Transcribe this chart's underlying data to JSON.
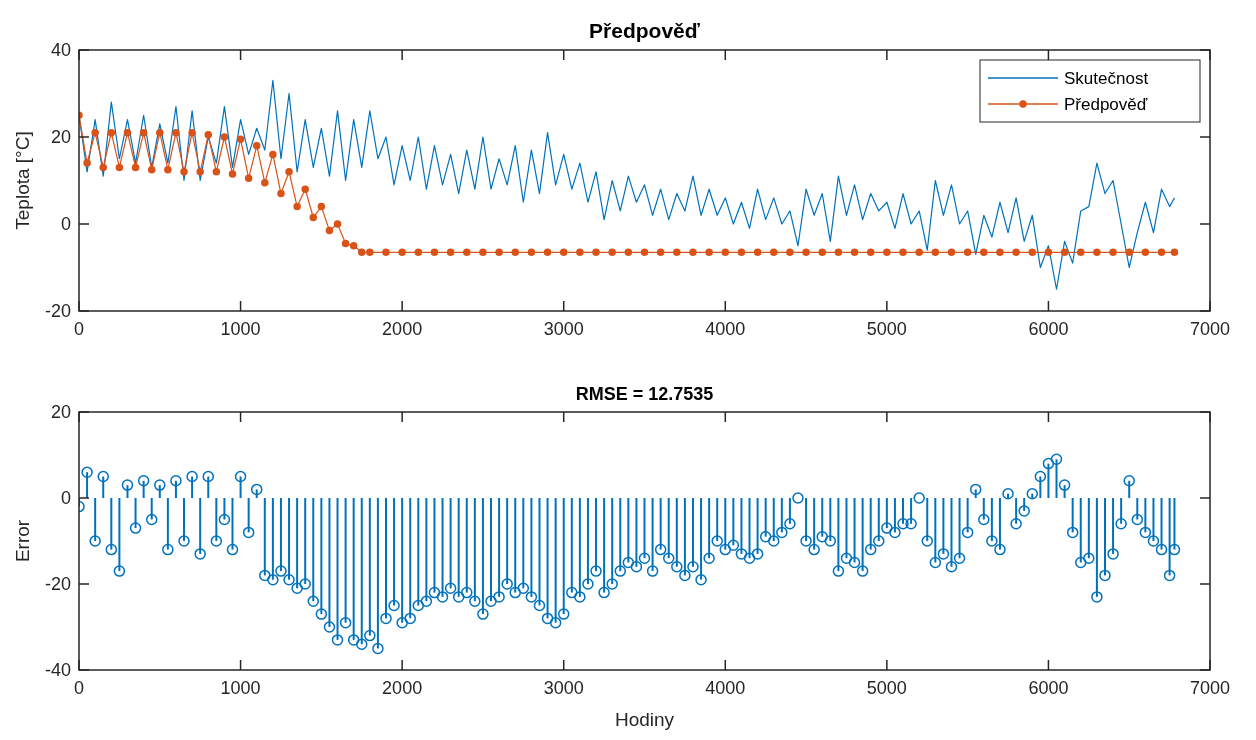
{
  "chart_data": [
    {
      "type": "line",
      "title": "Předpověď",
      "ylabel": "Teplota [°C]",
      "xlim": [
        0,
        7000
      ],
      "xticks": [
        0,
        1000,
        2000,
        3000,
        4000,
        5000,
        6000,
        7000
      ],
      "ylim": [
        -20,
        40
      ],
      "yticks": [
        -20,
        0,
        20,
        40
      ],
      "legend": "top right",
      "grid": false,
      "series": [
        {
          "name": "Skutečnost",
          "color": "#0072bd",
          "marker": "none",
          "x": [
            0,
            50,
            100,
            150,
            200,
            250,
            300,
            350,
            400,
            450,
            500,
            550,
            600,
            650,
            700,
            750,
            800,
            850,
            900,
            950,
            1000,
            1050,
            1100,
            1150,
            1200,
            1250,
            1300,
            1350,
            1400,
            1450,
            1500,
            1550,
            1600,
            1650,
            1700,
            1750,
            1800,
            1850,
            1900,
            1950,
            2000,
            2050,
            2100,
            2150,
            2200,
            2250,
            2300,
            2350,
            2400,
            2450,
            2500,
            2550,
            2600,
            2650,
            2700,
            2750,
            2800,
            2850,
            2900,
            2950,
            3000,
            3050,
            3100,
            3150,
            3200,
            3250,
            3300,
            3350,
            3400,
            3450,
            3500,
            3550,
            3600,
            3650,
            3700,
            3750,
            3800,
            3850,
            3900,
            3950,
            4000,
            4050,
            4100,
            4150,
            4200,
            4250,
            4300,
            4350,
            4400,
            4450,
            4500,
            4550,
            4600,
            4650,
            4700,
            4750,
            4800,
            4850,
            4900,
            4950,
            5000,
            5050,
            5100,
            5150,
            5200,
            5250,
            5300,
            5350,
            5400,
            5450,
            5500,
            5550,
            5600,
            5650,
            5700,
            5750,
            5800,
            5850,
            5900,
            5950,
            6000,
            6050,
            6100,
            6150,
            6200,
            6250,
            6300,
            6350,
            6400,
            6450,
            6500,
            6550,
            6600,
            6650,
            6700,
            6750,
            6780
          ],
          "values": [
            25,
            12,
            24,
            11,
            28,
            15,
            24,
            14,
            25,
            13,
            23,
            14,
            27,
            10,
            26,
            10,
            20,
            14,
            27,
            13,
            24,
            16,
            22,
            17,
            33,
            15,
            30,
            12,
            24,
            13,
            22,
            11,
            26,
            10,
            24,
            13,
            26,
            15,
            20,
            9,
            18,
            10,
            20,
            8,
            18,
            9,
            16,
            7,
            17,
            8,
            20,
            8,
            15,
            9,
            18,
            5,
            17,
            7,
            21,
            9,
            16,
            8,
            14,
            5,
            12,
            1,
            10,
            3,
            11,
            5,
            9,
            2,
            8,
            1,
            7,
            3,
            11,
            2,
            8,
            2,
            6,
            0,
            5,
            -1,
            8,
            1,
            6,
            0,
            3,
            -5,
            8,
            2,
            7,
            -4,
            11,
            2,
            9,
            1,
            7,
            3,
            5,
            -1,
            7,
            0,
            3,
            -6,
            10,
            2,
            9,
            0,
            3,
            -7,
            2,
            -3,
            5,
            -2,
            6,
            -4,
            2,
            -10,
            -5,
            -15,
            -4,
            -9,
            3,
            4,
            14,
            7,
            10,
            0,
            -10,
            -2,
            5,
            -2,
            8,
            4,
            6
          ]
        },
        {
          "name": "Předpověď",
          "color": "#d95319",
          "marker": "circle",
          "x": [
            0,
            50,
            100,
            150,
            200,
            250,
            300,
            350,
            400,
            450,
            500,
            550,
            600,
            650,
            700,
            750,
            800,
            850,
            900,
            950,
            1000,
            1050,
            1100,
            1150,
            1200,
            1250,
            1300,
            1350,
            1400,
            1450,
            1500,
            1550,
            1600,
            1650,
            1700,
            1750,
            1800,
            1900,
            2000,
            2100,
            2200,
            2300,
            2400,
            2500,
            2600,
            2700,
            2800,
            2900,
            3000,
            3100,
            3200,
            3300,
            3400,
            3500,
            3600,
            3700,
            3800,
            3900,
            4000,
            4100,
            4200,
            4300,
            4400,
            4500,
            4600,
            4700,
            4800,
            4900,
            5000,
            5100,
            5200,
            5300,
            5400,
            5500,
            5600,
            5700,
            5800,
            5900,
            6000,
            6100,
            6200,
            6300,
            6400,
            6500,
            6600,
            6700,
            6780
          ],
          "values": [
            25,
            14,
            21,
            13,
            21,
            13,
            21,
            13,
            21,
            12.5,
            21,
            12.5,
            21,
            12,
            21,
            12,
            20.5,
            12,
            20,
            11.5,
            19.5,
            10.5,
            18,
            9.5,
            16,
            7,
            12,
            4,
            8,
            1.5,
            4,
            -1.5,
            0,
            -4.5,
            -5,
            -6.5,
            -6.5,
            -6.5,
            -6.5,
            -6.5,
            -6.5,
            -6.5,
            -6.5,
            -6.5,
            -6.5,
            -6.5,
            -6.5,
            -6.5,
            -6.5,
            -6.5,
            -6.5,
            -6.5,
            -6.5,
            -6.5,
            -6.5,
            -6.5,
            -6.5,
            -6.5,
            -6.5,
            -6.5,
            -6.5,
            -6.5,
            -6.5,
            -6.5,
            -6.5,
            -6.5,
            -6.5,
            -6.5,
            -6.5,
            -6.5,
            -6.5,
            -6.5,
            -6.5,
            -6.5,
            -6.5,
            -6.5,
            -6.5,
            -6.5,
            -6.5,
            -6.5,
            -6.5,
            -6.5,
            -6.5,
            -6.5,
            -6.5,
            -6.5,
            -6.5
          ]
        }
      ]
    },
    {
      "type": "lollipop",
      "title": "RMSE = 12.7535",
      "xlabel": "Hodiny",
      "ylabel": "Error",
      "xlim": [
        0,
        7000
      ],
      "xticks": [
        0,
        1000,
        2000,
        3000,
        4000,
        5000,
        6000,
        7000
      ],
      "ylim": [
        -40,
        20
      ],
      "yticks": [
        -40,
        -20,
        0,
        20
      ],
      "grid": false,
      "marker": "circle",
      "series": [
        {
          "color": "#0072bd",
          "x": [
            0,
            50,
            100,
            150,
            200,
            250,
            300,
            350,
            400,
            450,
            500,
            550,
            600,
            650,
            700,
            750,
            800,
            850,
            900,
            950,
            1000,
            1050,
            1100,
            1150,
            1200,
            1250,
            1300,
            1350,
            1400,
            1450,
            1500,
            1550,
            1600,
            1650,
            1700,
            1750,
            1800,
            1850,
            1900,
            1950,
            2000,
            2050,
            2100,
            2150,
            2200,
            2250,
            2300,
            2350,
            2400,
            2450,
            2500,
            2550,
            2600,
            2650,
            2700,
            2750,
            2800,
            2850,
            2900,
            2950,
            3000,
            3050,
            3100,
            3150,
            3200,
            3250,
            3300,
            3350,
            3400,
            3450,
            3500,
            3550,
            3600,
            3650,
            3700,
            3750,
            3800,
            3850,
            3900,
            3950,
            4000,
            4050,
            4100,
            4150,
            4200,
            4250,
            4300,
            4350,
            4400,
            4450,
            4500,
            4550,
            4600,
            4650,
            4700,
            4750,
            4800,
            4850,
            4900,
            4950,
            5000,
            5050,
            5100,
            5150,
            5200,
            5250,
            5300,
            5350,
            5400,
            5450,
            5500,
            5550,
            5600,
            5650,
            5700,
            5750,
            5800,
            5850,
            5900,
            5950,
            6000,
            6050,
            6100,
            6150,
            6200,
            6250,
            6300,
            6350,
            6400,
            6450,
            6500,
            6550,
            6600,
            6650,
            6700,
            6750,
            6780
          ],
          "values": [
            -2,
            6,
            -10,
            5,
            -12,
            -17,
            3,
            -7,
            4,
            -5,
            3,
            -12,
            4,
            -10,
            5,
            -13,
            5,
            -10,
            -5,
            -12,
            5,
            -8,
            2,
            -18,
            -19,
            -17,
            -19,
            -21,
            -20,
            -24,
            -27,
            -30,
            -33,
            -29,
            -33,
            -34,
            -32,
            -35,
            -28,
            -25,
            -29,
            -28,
            -25,
            -24,
            -22,
            -23,
            -21,
            -23,
            -22,
            -24,
            -27,
            -24,
            -23,
            -20,
            -22,
            -21,
            -23,
            -25,
            -28,
            -29,
            -27,
            -22,
            -23,
            -20,
            -17,
            -22,
            -20,
            -17,
            -15,
            -16,
            -14,
            -17,
            -12,
            -14,
            -16,
            -18,
            -16,
            -19,
            -14,
            -10,
            -12,
            -11,
            -13,
            -14,
            -13,
            -9,
            -10,
            -8,
            -6,
            0,
            -10,
            -12,
            -9,
            -10,
            -17,
            -14,
            -15,
            -17,
            -12,
            -10,
            -7,
            -8,
            -6,
            -6,
            0,
            -10,
            -15,
            -13,
            -16,
            -14,
            -8,
            2,
            -5,
            -10,
            -12,
            1,
            -6,
            -3,
            1,
            5,
            8,
            9,
            3,
            -8,
            -15,
            -14,
            -23,
            -18,
            -13,
            -6,
            4,
            -5,
            -8,
            -10,
            -12,
            -18,
            -12
          ]
        }
      ]
    }
  ]
}
